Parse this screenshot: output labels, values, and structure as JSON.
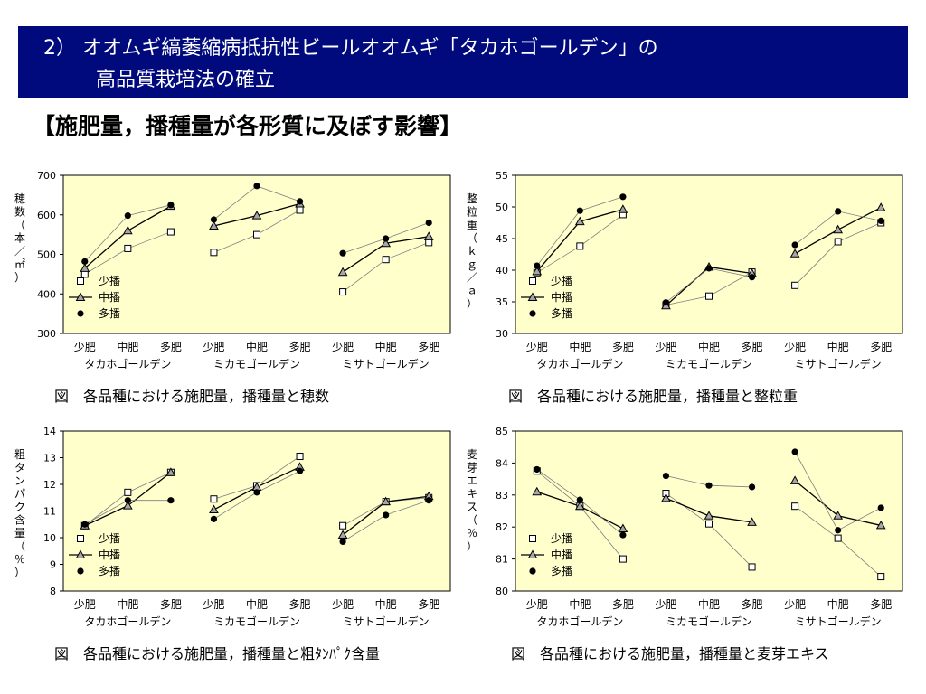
{
  "header": {
    "line1": "2） オオムギ縞萎縮病抵抗性ビールオオムギ「タカホゴールデン」の",
    "line2": "高品質栽培法の確立"
  },
  "subtitle": "【施肥量，播種量が各形質に及ぼす影響】",
  "captions": {
    "c1": "図　各品種における施肥量，播種量と穂数",
    "c2": "図　各品種における施肥量，播種量と整粒重",
    "c3": "図　各品種における施肥量，播種量と粗ﾀﾝﾊﾟｸ含量",
    "c4": "図　各品種における施肥量，播種量と麦芽エキス"
  },
  "colors": {
    "plot_bg": "#ffffcc",
    "header_bg": "#000a7c",
    "line": "#7f7f7f",
    "main_line": "#000000"
  },
  "chart_data": [
    {
      "type": "line",
      "ylabel": "穂数（本／㎡）",
      "ylim": [
        300,
        700
      ],
      "yticks": [
        300,
        400,
        500,
        600,
        700
      ],
      "groups": [
        "タカホゴールデン",
        "ミカモゴールデン",
        "ミサトゴールデン"
      ],
      "categories": [
        "少肥",
        "中肥",
        "多肥"
      ],
      "legend": "left-bottom",
      "series": [
        {
          "name": "少播",
          "marker": "square",
          "values": [
            [
              450,
              515,
              557
            ],
            [
              505,
              550,
              612
            ],
            [
              405,
              487,
              530
            ]
          ]
        },
        {
          "name": "中播",
          "marker": "triangle",
          "values": [
            [
              465,
              560,
              622
            ],
            [
              572,
              598,
              628
            ],
            [
              455,
              528,
              545
            ]
          ]
        },
        {
          "name": "多播",
          "marker": "circle",
          "values": [
            [
              482,
              598,
              625
            ],
            [
              588,
              673,
              634
            ],
            [
              503,
              540,
              580
            ]
          ]
        }
      ]
    },
    {
      "type": "line",
      "ylabel": "整粒重（ｋｇ／ａ）",
      "ylim": [
        30,
        55
      ],
      "yticks": [
        30,
        35,
        40,
        45,
        50,
        55
      ],
      "groups": [
        "タカホゴールデン",
        "ミカモゴールデン",
        "ミサトゴールデン"
      ],
      "categories": [
        "少肥",
        "中肥",
        "多肥"
      ],
      "legend": "left-bottom",
      "series": [
        {
          "name": "少播",
          "marker": "square",
          "values": [
            [
              39.6,
              43.8,
              48.8
            ],
            [
              34.5,
              35.9,
              39.7
            ],
            [
              37.6,
              44.5,
              47.5
            ]
          ]
        },
        {
          "name": "中播",
          "marker": "triangle",
          "values": [
            [
              39.8,
              47.7,
              49.6
            ],
            [
              34.4,
              40.5,
              39.5
            ],
            [
              42.6,
              46.4,
              49.9
            ]
          ]
        },
        {
          "name": "多播",
          "marker": "circle",
          "values": [
            [
              40.7,
              49.4,
              51.6
            ],
            [
              34.9,
              40.3,
              38.9
            ],
            [
              44.0,
              49.3,
              47.8
            ]
          ]
        }
      ]
    },
    {
      "type": "line",
      "ylabel": "粗タンパク含量（％）",
      "ylim": [
        8,
        14
      ],
      "yticks": [
        8,
        9,
        10,
        11,
        12,
        13,
        14
      ],
      "groups": [
        "タカホゴールデン",
        "ミカモゴールデン",
        "ミサトゴールデン"
      ],
      "categories": [
        "少肥",
        "中肥",
        "多肥"
      ],
      "legend": "left-bottom",
      "series": [
        {
          "name": "少播",
          "marker": "square",
          "values": [
            [
              10.45,
              11.7,
              12.45
            ],
            [
              11.45,
              11.95,
              13.05
            ],
            [
              10.45,
              11.35,
              11.5
            ]
          ]
        },
        {
          "name": "中播",
          "marker": "triangle",
          "values": [
            [
              10.45,
              11.2,
              12.45
            ],
            [
              11.05,
              11.9,
              12.65
            ],
            [
              10.1,
              11.35,
              11.55
            ]
          ]
        },
        {
          "name": "多播",
          "marker": "circle",
          "values": [
            [
              10.5,
              11.4,
              11.4
            ],
            [
              10.7,
              11.7,
              12.5
            ],
            [
              9.85,
              10.85,
              11.4
            ]
          ]
        }
      ]
    },
    {
      "type": "line",
      "ylabel": "麦芽エキス（％）",
      "ylim": [
        80,
        85
      ],
      "yticks": [
        80,
        81,
        82,
        83,
        84,
        85
      ],
      "groups": [
        "タカホゴールデン",
        "ミカモゴールデン",
        "ミサトゴールデン"
      ],
      "categories": [
        "少肥",
        "中肥",
        "多肥"
      ],
      "legend": "left-bottom",
      "series": [
        {
          "name": "少播",
          "marker": "square",
          "values": [
            [
              83.75,
              82.65,
              81.0
            ],
            [
              83.05,
              82.1,
              80.75
            ],
            [
              82.65,
              81.65,
              80.45
            ]
          ]
        },
        {
          "name": "中播",
          "marker": "triangle",
          "values": [
            [
              83.1,
              82.65,
              81.95
            ],
            [
              82.9,
              82.35,
              82.15
            ],
            [
              83.45,
              82.35,
              82.05
            ]
          ]
        },
        {
          "name": "多播",
          "marker": "circle",
          "values": [
            [
              83.8,
              82.85,
              81.75
            ],
            [
              83.6,
              83.3,
              83.25
            ],
            [
              84.35,
              81.9,
              82.6
            ]
          ]
        }
      ]
    }
  ]
}
